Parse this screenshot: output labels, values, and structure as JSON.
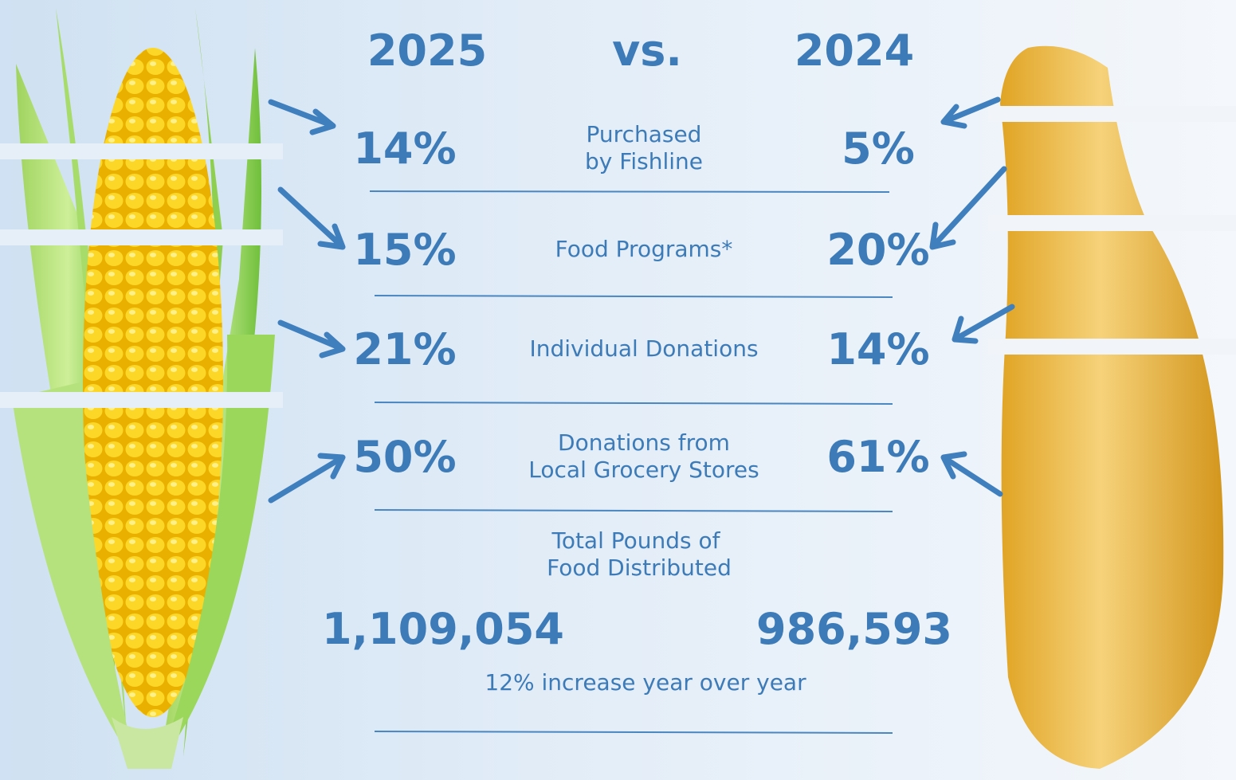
{
  "header": {
    "year_a": "2025",
    "vs": "vs.",
    "year_b": "2024"
  },
  "rows": [
    {
      "label": [
        "Purchased",
        "by Fishline"
      ],
      "a": "14%",
      "b": "5%"
    },
    {
      "label": [
        "Food Programs*"
      ],
      "a": "15%",
      "b": "20%"
    },
    {
      "label": [
        "Individual Donations"
      ],
      "a": "21%",
      "b": "14%"
    },
    {
      "label": [
        "Donations from",
        "Local Grocery Stores"
      ],
      "a": "50%",
      "b": "61%"
    }
  ],
  "total": {
    "label": [
      "Total Pounds of",
      "Food Distributed"
    ],
    "a": "1,109,054",
    "b": "986,593",
    "note": "12% increase year over year"
  }
}
